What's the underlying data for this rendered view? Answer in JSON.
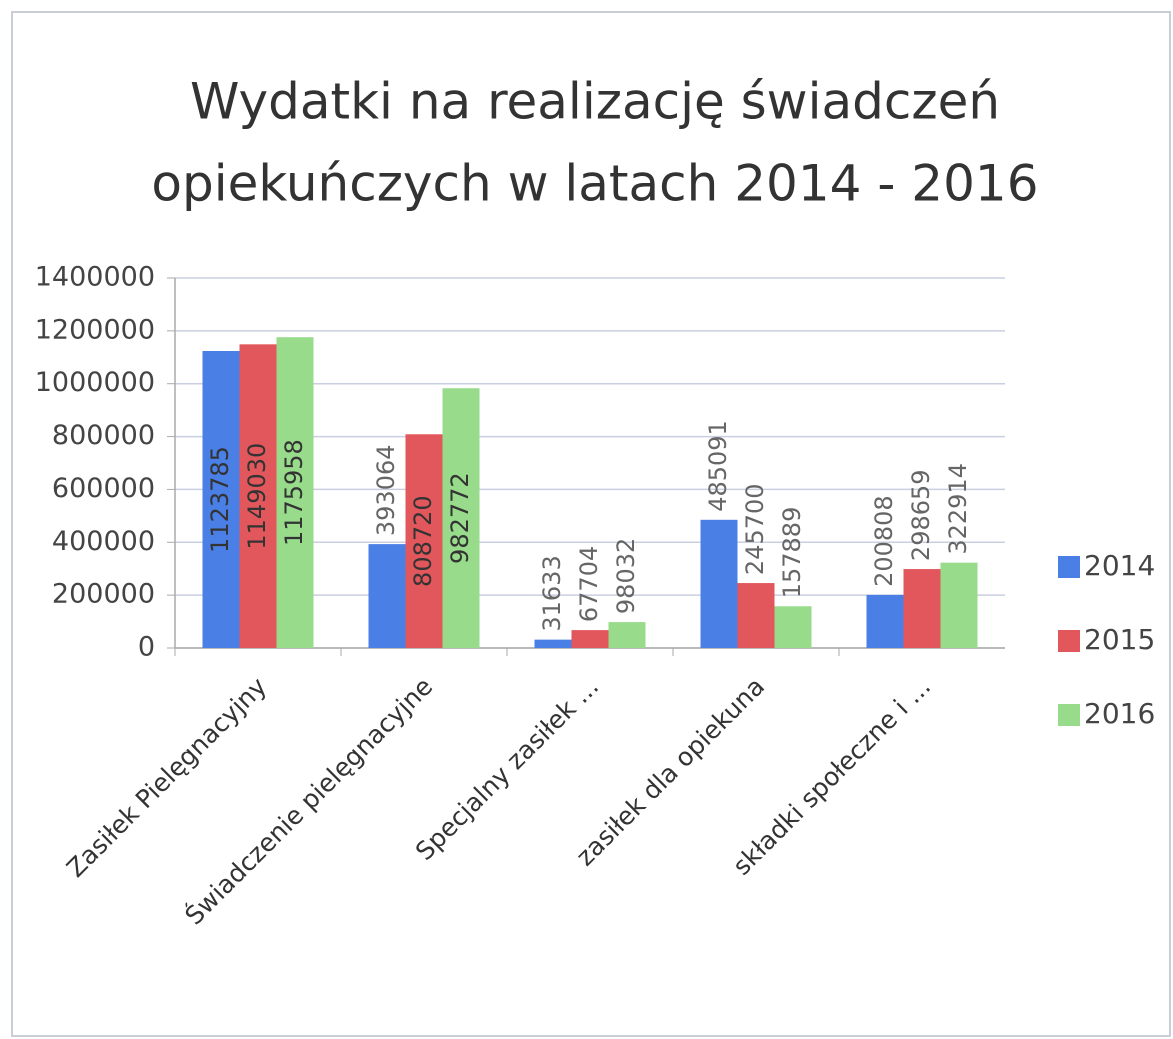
{
  "chart_data": {
    "type": "bar",
    "title": [
      "Wydatki na realizację świadczeń",
      "opiekuńczych w latach 2014 - 2016"
    ],
    "categories": [
      "Zasiłek Pielęgnacyjny",
      "Świadczenie pielęgnacyjne",
      "Specjalny zasiłek ...",
      "zasiłek dla opiekuna",
      "składki społeczne i ..."
    ],
    "series": [
      {
        "name": "2014",
        "color": "#4a7fe6",
        "values": [
          1123785,
          393064,
          31633,
          485091,
          200808
        ]
      },
      {
        "name": "2015",
        "color": "#e2575b",
        "values": [
          1149030,
          808720,
          67704,
          245700,
          298659
        ]
      },
      {
        "name": "2016",
        "color": "#97db8b",
        "values": [
          1175958,
          982772,
          98032,
          157889,
          322914
        ]
      }
    ],
    "ylim": [
      0,
      1400000
    ],
    "yticks": [
      0,
      200000,
      400000,
      600000,
      800000,
      1000000,
      1200000,
      1400000
    ],
    "grid": true,
    "legend": "right"
  }
}
